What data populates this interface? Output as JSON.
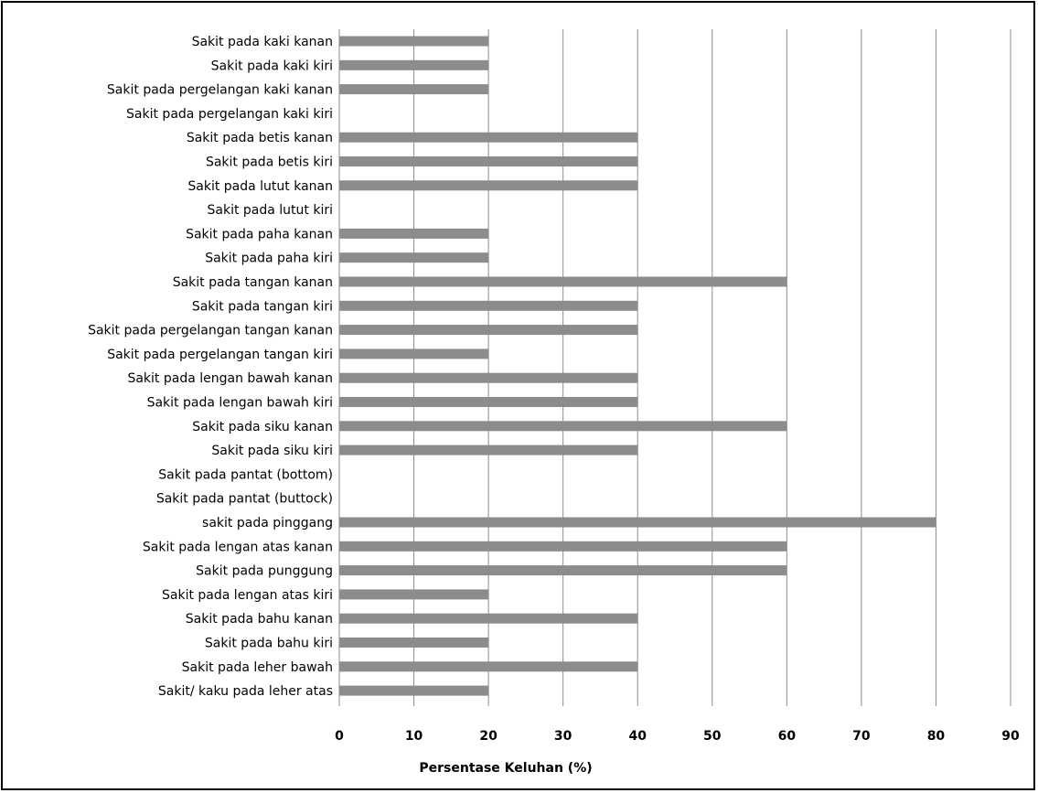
{
  "chart_data": {
    "type": "bar",
    "orientation": "horizontal",
    "title": "",
    "xlabel": "Persentase Keluhan (%)",
    "ylabel": "",
    "xlim": [
      0,
      90
    ],
    "xticks": [
      0,
      10,
      20,
      30,
      40,
      50,
      60,
      70,
      80,
      90
    ],
    "grid": "vertical",
    "legend": "none",
    "bar_color": "#8c8c8c",
    "grid_color": "#8c8c8c",
    "categories": [
      "Sakit pada kaki kanan",
      "Sakit pada kaki kiri",
      "Sakit pada pergelangan kaki kanan",
      "Sakit pada pergelangan kaki kiri",
      "Sakit pada betis kanan",
      "Sakit pada betis kiri",
      "Sakit pada lutut kanan",
      "Sakit pada lutut kiri",
      "Sakit pada paha kanan",
      "Sakit pada paha kiri",
      "Sakit pada tangan kanan",
      "Sakit pada tangan kiri",
      "Sakit pada pergelangan tangan kanan",
      "Sakit pada pergelangan tangan kiri",
      "Sakit pada lengan bawah kanan",
      "Sakit pada lengan bawah kiri",
      "Sakit pada siku kanan",
      "Sakit pada siku kiri",
      "Sakit pada pantat (bottom)",
      "Sakit pada pantat (buttock)",
      "sakit pada pinggang",
      "Sakit pada lengan atas kanan",
      "Sakit pada punggung",
      "Sakit pada lengan atas kiri",
      "Sakit pada bahu kanan",
      "Sakit pada bahu kiri",
      "Sakit pada leher bawah",
      "Sakit/ kaku pada leher atas"
    ],
    "values": [
      20,
      20,
      20,
      0,
      40,
      40,
      40,
      0,
      20,
      20,
      60,
      40,
      40,
      20,
      40,
      40,
      60,
      40,
      0,
      0,
      80,
      60,
      60,
      20,
      40,
      20,
      40,
      20
    ]
  }
}
